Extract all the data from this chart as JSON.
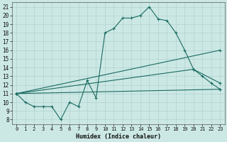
{
  "xlabel": "Humidex (Indice chaleur)",
  "bg_color": "#cce8e4",
  "line_color": "#1a6b62",
  "grid_color": "#aaccca",
  "xlim": [
    -0.5,
    23.5
  ],
  "ylim": [
    7.5,
    21.5
  ],
  "xticks": [
    0,
    1,
    2,
    3,
    4,
    5,
    6,
    7,
    8,
    9,
    10,
    11,
    12,
    13,
    14,
    15,
    16,
    17,
    18,
    19,
    20,
    21,
    22,
    23
  ],
  "yticks": [
    8,
    9,
    10,
    11,
    12,
    13,
    14,
    15,
    16,
    17,
    18,
    19,
    20,
    21
  ],
  "lines": [
    {
      "x": [
        0,
        1,
        2,
        3,
        4,
        5,
        6,
        7,
        8,
        9,
        10,
        11,
        12,
        13,
        14,
        15,
        16,
        17,
        18,
        19,
        20,
        21,
        22,
        23
      ],
      "y": [
        11,
        10,
        9.5,
        9.5,
        9.5,
        8,
        10,
        9.5,
        12.5,
        10.5,
        18,
        18.5,
        19.7,
        19.7,
        20,
        21,
        19.6,
        19.4,
        18,
        16,
        13.8,
        13,
        12.2,
        11.5
      ],
      "marker": true
    },
    {
      "x": [
        0,
        23
      ],
      "y": [
        11,
        11.5
      ],
      "marker": false
    },
    {
      "x": [
        0,
        20,
        23
      ],
      "y": [
        11,
        13.8,
        12.2
      ],
      "marker": false
    },
    {
      "x": [
        0,
        23
      ],
      "y": [
        11,
        16
      ],
      "marker": false
    }
  ]
}
